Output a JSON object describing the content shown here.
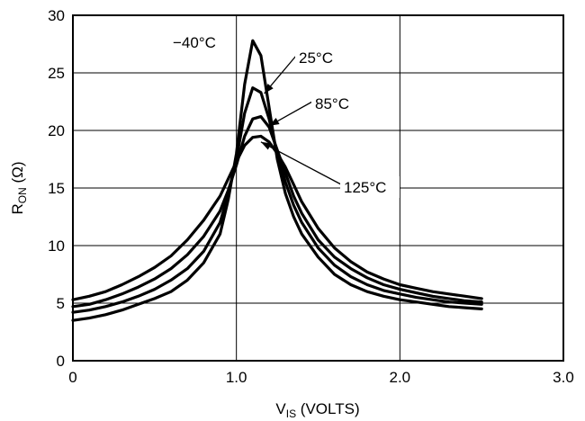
{
  "chart_data": {
    "type": "line",
    "xlabel": "V",
    "xlabel_sub": "IS",
    "xlabel_suffix": " (VOLTS)",
    "ylabel": "R",
    "ylabel_sub": "ON",
    "ylabel_suffix": " (Ω)",
    "xlim": [
      0,
      3
    ],
    "ylim": [
      0,
      30
    ],
    "grid": true,
    "x_ticks": [
      {
        "value": 0,
        "label": "0"
      },
      {
        "value": 1,
        "label": "1.0"
      },
      {
        "value": 2,
        "label": "2.0"
      },
      {
        "value": 3,
        "label": "3.0"
      }
    ],
    "y_ticks": [
      {
        "value": 0,
        "label": "0"
      },
      {
        "value": 5,
        "label": "5"
      },
      {
        "value": 10,
        "label": "10"
      },
      {
        "value": 15,
        "label": "15"
      },
      {
        "value": 20,
        "label": "20"
      },
      {
        "value": 25,
        "label": "25"
      },
      {
        "value": 30,
        "label": "30"
      }
    ],
    "series": [
      {
        "name": "−40°C",
        "x": [
          0,
          0.1,
          0.2,
          0.3,
          0.4,
          0.5,
          0.6,
          0.7,
          0.8,
          0.9,
          0.95,
          1.0,
          1.05,
          1.1,
          1.15,
          1.2,
          1.25,
          1.3,
          1.35,
          1.4,
          1.5,
          1.6,
          1.7,
          1.8,
          1.9,
          2.0,
          2.1,
          2.2,
          2.3,
          2.4,
          2.5
        ],
        "y": [
          3.5,
          3.7,
          4.0,
          4.4,
          4.9,
          5.4,
          6.0,
          7.0,
          8.5,
          11.0,
          14.0,
          18.0,
          24.0,
          27.8,
          26.5,
          22.0,
          17.5,
          14.5,
          12.5,
          11.0,
          9.0,
          7.5,
          6.6,
          6.0,
          5.6,
          5.3,
          5.1,
          4.9,
          4.7,
          4.6,
          4.5
        ]
      },
      {
        "name": "25°C",
        "x": [
          0,
          0.1,
          0.2,
          0.3,
          0.4,
          0.5,
          0.6,
          0.7,
          0.8,
          0.9,
          0.95,
          1.0,
          1.05,
          1.1,
          1.15,
          1.2,
          1.25,
          1.3,
          1.35,
          1.4,
          1.5,
          1.6,
          1.7,
          1.8,
          1.9,
          2.0,
          2.1,
          2.2,
          2.3,
          2.4,
          2.5
        ],
        "y": [
          4.2,
          4.4,
          4.7,
          5.1,
          5.6,
          6.2,
          7.0,
          8.0,
          9.5,
          12.0,
          14.5,
          17.5,
          21.5,
          23.7,
          23.3,
          21.0,
          18.0,
          15.5,
          13.5,
          12.0,
          9.8,
          8.3,
          7.3,
          6.6,
          6.1,
          5.8,
          5.5,
          5.3,
          5.1,
          5.0,
          4.9
        ]
      },
      {
        "name": "85°C",
        "x": [
          0,
          0.1,
          0.2,
          0.3,
          0.4,
          0.5,
          0.6,
          0.7,
          0.8,
          0.9,
          0.95,
          1.0,
          1.05,
          1.1,
          1.15,
          1.2,
          1.25,
          1.3,
          1.35,
          1.4,
          1.5,
          1.6,
          1.7,
          1.8,
          1.9,
          2.0,
          2.1,
          2.2,
          2.3,
          2.4,
          2.5
        ],
        "y": [
          4.7,
          4.9,
          5.3,
          5.8,
          6.4,
          7.1,
          8.0,
          9.2,
          10.8,
          13.0,
          14.8,
          17.0,
          19.5,
          21.0,
          21.2,
          20.3,
          18.3,
          16.3,
          14.3,
          12.8,
          10.5,
          9.0,
          8.0,
          7.2,
          6.6,
          6.2,
          5.9,
          5.6,
          5.4,
          5.2,
          5.1
        ]
      },
      {
        "name": "125°C",
        "x": [
          0,
          0.1,
          0.2,
          0.3,
          0.4,
          0.5,
          0.6,
          0.7,
          0.8,
          0.9,
          0.95,
          1.0,
          1.05,
          1.1,
          1.15,
          1.2,
          1.25,
          1.3,
          1.35,
          1.4,
          1.5,
          1.6,
          1.7,
          1.8,
          1.9,
          2.0,
          2.1,
          2.2,
          2.3,
          2.4,
          2.5
        ],
        "y": [
          5.3,
          5.6,
          6.0,
          6.6,
          7.3,
          8.1,
          9.1,
          10.5,
          12.2,
          14.3,
          15.8,
          17.3,
          18.7,
          19.4,
          19.5,
          19.0,
          18.0,
          16.8,
          15.3,
          13.8,
          11.5,
          9.8,
          8.6,
          7.7,
          7.1,
          6.6,
          6.3,
          6.0,
          5.8,
          5.6,
          5.4
        ]
      }
    ],
    "annotations": [
      {
        "text": "−40°C",
        "series": "−40°C"
      },
      {
        "text": "25°C",
        "series": "25°C"
      },
      {
        "text": "85°C",
        "series": "85°C"
      },
      {
        "text": "125°C",
        "series": "125°C"
      }
    ]
  }
}
